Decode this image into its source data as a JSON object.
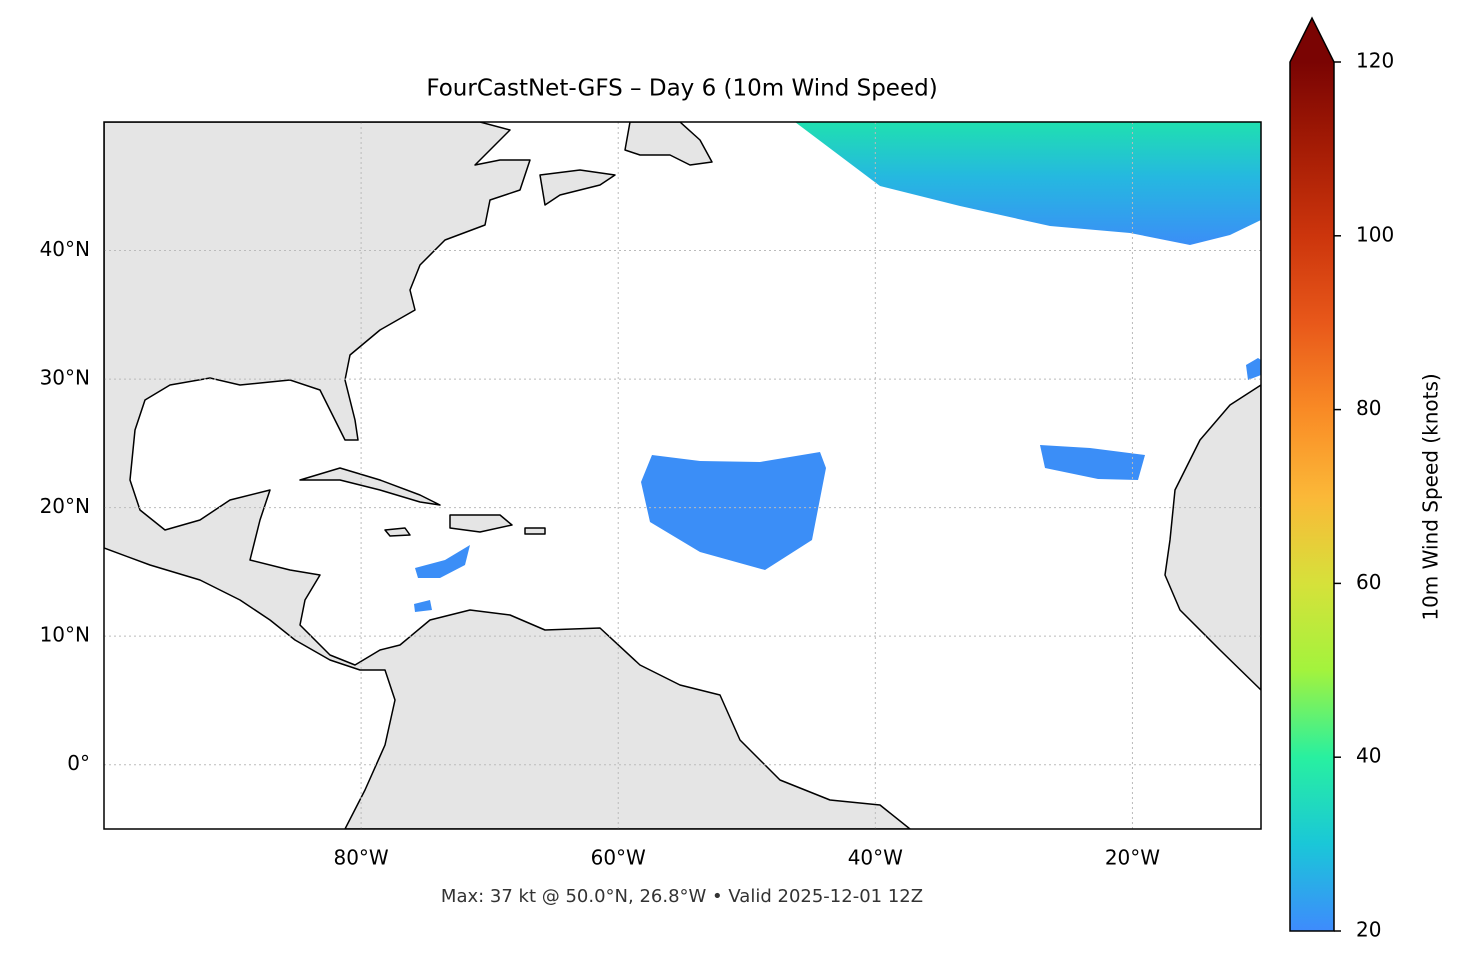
{
  "chart_data": {
    "type": "map",
    "title": "FourCastNet-GFS – Day 6 (10m Wind Speed)",
    "annotation": "Max: 37 kt @ 50.0°N, 26.8°W • Valid 2025-12-01 12Z",
    "xlim": [
      -100,
      -10
    ],
    "ylim": [
      -5,
      50
    ],
    "xticks": [
      {
        "value": -80,
        "label": "80°W"
      },
      {
        "value": -60,
        "label": "60°W"
      },
      {
        "value": -40,
        "label": "40°W"
      },
      {
        "value": -20,
        "label": "20°W"
      }
    ],
    "yticks": [
      {
        "value": 0,
        "label": "0°"
      },
      {
        "value": 10,
        "label": "10°N"
      },
      {
        "value": 20,
        "label": "20°N"
      },
      {
        "value": 30,
        "label": "30°N"
      },
      {
        "value": 40,
        "label": "40°N"
      }
    ],
    "grid": true,
    "colorbar": {
      "label": "10m Wind Speed (knots)",
      "lim": [
        20,
        120
      ],
      "ticks": [
        20,
        40,
        60,
        80,
        100,
        120
      ],
      "extend": "max",
      "colors": [
        "#3e8bfd",
        "#1ac7d8",
        "#28f0a0",
        "#a3f33d",
        "#d6e13a",
        "#fbb838",
        "#f98a25",
        "#e8581a",
        "#cc350c",
        "#a51c05",
        "#7a0403"
      ]
    }
  }
}
